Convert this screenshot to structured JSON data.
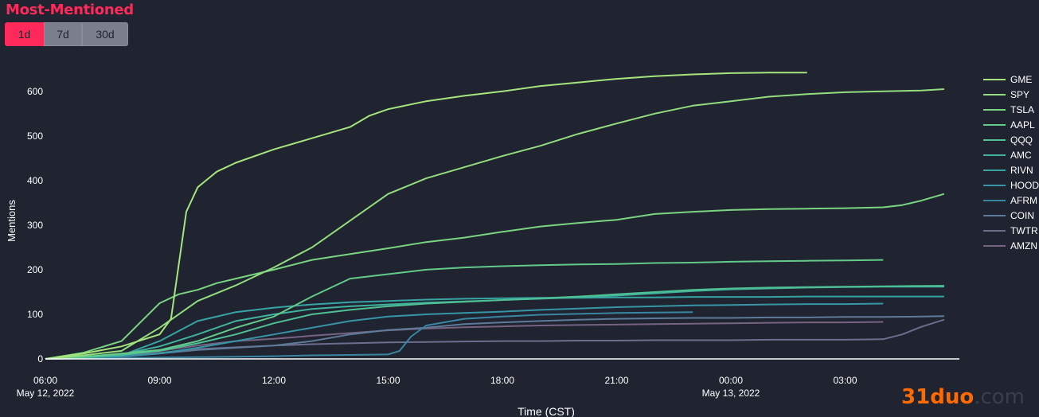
{
  "header": {
    "title": "Most-Mentioned",
    "range_buttons": [
      {
        "label": "1d",
        "active": true
      },
      {
        "label": "7d",
        "active": false
      },
      {
        "label": "30d",
        "active": false
      }
    ]
  },
  "watermark": {
    "brand": "31duo",
    "tld": ".com"
  },
  "colors": {
    "background": "#1f2430",
    "accent": "#ff2a5a",
    "axis": "#ffffff"
  },
  "chart_data": {
    "type": "line",
    "xlabel": "Time (CST)",
    "ylabel": "Mentions",
    "x_unit": "hours since 06:00 CST, May 12, 2022",
    "xlim": [
      0,
      24
    ],
    "ylim": [
      0,
      680
    ],
    "grid": false,
    "legend_position": "right",
    "x_ticks": [
      {
        "x": 0,
        "label": "06:00",
        "sublabel": "May 12, 2022"
      },
      {
        "x": 3,
        "label": "09:00",
        "sublabel": ""
      },
      {
        "x": 6,
        "label": "12:00",
        "sublabel": ""
      },
      {
        "x": 9,
        "label": "15:00",
        "sublabel": ""
      },
      {
        "x": 12,
        "label": "18:00",
        "sublabel": ""
      },
      {
        "x": 15,
        "label": "21:00",
        "sublabel": ""
      },
      {
        "x": 18,
        "label": "00:00",
        "sublabel": "May 13, 2022"
      },
      {
        "x": 21,
        "label": "03:00",
        "sublabel": ""
      }
    ],
    "y_ticks": [
      0,
      100,
      200,
      300,
      400,
      500,
      600
    ],
    "series": [
      {
        "name": "GME",
        "color": "#a6e57c",
        "points": [
          [
            0,
            0
          ],
          [
            1,
            12
          ],
          [
            2,
            28
          ],
          [
            3,
            55
          ],
          [
            3.3,
            90
          ],
          [
            3.5,
            210
          ],
          [
            3.7,
            330
          ],
          [
            4,
            385
          ],
          [
            4.5,
            420
          ],
          [
            5,
            440
          ],
          [
            6,
            470
          ],
          [
            7,
            495
          ],
          [
            8,
            520
          ],
          [
            8.5,
            545
          ],
          [
            9,
            560
          ],
          [
            10,
            578
          ],
          [
            11,
            590
          ],
          [
            12,
            600
          ],
          [
            13,
            612
          ],
          [
            14,
            620
          ],
          [
            15,
            628
          ],
          [
            16,
            634
          ],
          [
            17,
            638
          ],
          [
            18,
            641
          ],
          [
            19,
            642
          ],
          [
            20,
            642
          ]
        ]
      },
      {
        "name": "SPY",
        "color": "#93dd7e",
        "points": [
          [
            0,
            0
          ],
          [
            1,
            8
          ],
          [
            2,
            18
          ],
          [
            3,
            70
          ],
          [
            4,
            130
          ],
          [
            5,
            165
          ],
          [
            6,
            205
          ],
          [
            7,
            250
          ],
          [
            8,
            310
          ],
          [
            9,
            370
          ],
          [
            10,
            405
          ],
          [
            11,
            430
          ],
          [
            12,
            455
          ],
          [
            13,
            478
          ],
          [
            14,
            505
          ],
          [
            15,
            528
          ],
          [
            16,
            550
          ],
          [
            17,
            568
          ],
          [
            18,
            578
          ],
          [
            19,
            588
          ],
          [
            20,
            594
          ],
          [
            21,
            598
          ],
          [
            22,
            600
          ],
          [
            23,
            602
          ],
          [
            23.6,
            605
          ]
        ]
      },
      {
        "name": "TSLA",
        "color": "#7ad481",
        "points": [
          [
            0,
            0
          ],
          [
            1,
            14
          ],
          [
            2,
            40
          ],
          [
            3,
            125
          ],
          [
            3.5,
            145
          ],
          [
            4,
            155
          ],
          [
            4.5,
            170
          ],
          [
            5,
            180
          ],
          [
            6,
            200
          ],
          [
            7,
            222
          ],
          [
            8,
            235
          ],
          [
            9,
            248
          ],
          [
            10,
            262
          ],
          [
            11,
            272
          ],
          [
            12,
            285
          ],
          [
            13,
            297
          ],
          [
            14,
            305
          ],
          [
            15,
            312
          ],
          [
            16,
            325
          ],
          [
            17,
            330
          ],
          [
            18,
            334
          ],
          [
            19,
            336
          ],
          [
            20,
            337
          ],
          [
            21,
            338
          ],
          [
            22,
            340
          ],
          [
            22.5,
            345
          ],
          [
            23,
            355
          ],
          [
            23.6,
            370
          ]
        ]
      },
      {
        "name": "AAPL",
        "color": "#63ca8a",
        "points": [
          [
            0,
            0
          ],
          [
            1,
            5
          ],
          [
            2,
            12
          ],
          [
            3,
            20
          ],
          [
            4,
            40
          ],
          [
            5,
            70
          ],
          [
            6,
            95
          ],
          [
            7,
            140
          ],
          [
            8,
            180
          ],
          [
            9,
            190
          ],
          [
            10,
            200
          ],
          [
            11,
            205
          ],
          [
            12,
            208
          ],
          [
            13,
            210
          ],
          [
            14,
            212
          ],
          [
            15,
            213
          ],
          [
            16,
            215
          ],
          [
            17,
            216
          ],
          [
            18,
            218
          ],
          [
            19,
            219
          ],
          [
            20,
            220
          ],
          [
            21,
            221
          ],
          [
            22,
            222
          ]
        ]
      },
      {
        "name": "QQQ",
        "color": "#4fbf94",
        "points": [
          [
            0,
            0
          ],
          [
            1,
            4
          ],
          [
            2,
            9
          ],
          [
            3,
            18
          ],
          [
            4,
            35
          ],
          [
            5,
            55
          ],
          [
            6,
            80
          ],
          [
            7,
            100
          ],
          [
            8,
            110
          ],
          [
            9,
            118
          ],
          [
            10,
            124
          ],
          [
            11,
            128
          ],
          [
            12,
            132
          ],
          [
            13,
            136
          ],
          [
            14,
            140
          ],
          [
            15,
            145
          ],
          [
            16,
            150
          ],
          [
            17,
            155
          ],
          [
            18,
            158
          ],
          [
            19,
            160
          ],
          [
            20,
            161
          ],
          [
            21,
            162
          ],
          [
            22,
            163
          ],
          [
            23.6,
            164
          ]
        ]
      },
      {
        "name": "AMC",
        "color": "#40b29d",
        "points": [
          [
            0,
            0
          ],
          [
            1,
            3
          ],
          [
            2,
            10
          ],
          [
            3,
            28
          ],
          [
            4,
            55
          ],
          [
            5,
            85
          ],
          [
            6,
            100
          ],
          [
            7,
            112
          ],
          [
            8,
            118
          ],
          [
            9,
            122
          ],
          [
            10,
            126
          ],
          [
            11,
            129
          ],
          [
            12,
            132
          ],
          [
            13,
            135
          ],
          [
            14,
            138
          ],
          [
            15,
            142
          ],
          [
            16,
            147
          ],
          [
            17,
            152
          ],
          [
            18,
            156
          ],
          [
            19,
            158
          ],
          [
            20,
            160
          ],
          [
            21,
            161
          ],
          [
            22,
            162
          ],
          [
            23.6,
            162
          ]
        ]
      },
      {
        "name": "RIVN",
        "color": "#37a4a3",
        "points": [
          [
            0,
            0
          ],
          [
            1,
            2
          ],
          [
            2,
            8
          ],
          [
            3,
            40
          ],
          [
            4,
            85
          ],
          [
            5,
            105
          ],
          [
            6,
            115
          ],
          [
            7,
            122
          ],
          [
            8,
            127
          ],
          [
            9,
            130
          ],
          [
            10,
            133
          ],
          [
            11,
            135
          ],
          [
            12,
            136
          ],
          [
            13,
            137
          ],
          [
            14,
            137
          ],
          [
            15,
            138
          ],
          [
            16,
            138
          ],
          [
            17,
            139
          ],
          [
            18,
            139
          ],
          [
            19,
            139
          ],
          [
            20,
            140
          ],
          [
            21,
            140
          ],
          [
            22,
            140
          ],
          [
            23.6,
            140
          ]
        ]
      },
      {
        "name": "HOOD",
        "color": "#3795a5",
        "points": [
          [
            0,
            0
          ],
          [
            1,
            2
          ],
          [
            2,
            6
          ],
          [
            3,
            12
          ],
          [
            4,
            25
          ],
          [
            5,
            40
          ],
          [
            6,
            55
          ],
          [
            7,
            70
          ],
          [
            8,
            85
          ],
          [
            9,
            95
          ],
          [
            10,
            100
          ],
          [
            11,
            103
          ],
          [
            12,
            106
          ],
          [
            13,
            110
          ],
          [
            14,
            113
          ],
          [
            15,
            116
          ],
          [
            16,
            118
          ],
          [
            17,
            120
          ],
          [
            18,
            121
          ],
          [
            19,
            122
          ],
          [
            20,
            123
          ],
          [
            21,
            123
          ],
          [
            22,
            124
          ]
        ]
      },
      {
        "name": "AFRM",
        "color": "#3a86a2",
        "points": [
          [
            0,
            0
          ],
          [
            1,
            1
          ],
          [
            2,
            2
          ],
          [
            3,
            3
          ],
          [
            4,
            4
          ],
          [
            5,
            5
          ],
          [
            6,
            6
          ],
          [
            7,
            8
          ],
          [
            8,
            9
          ],
          [
            9,
            10
          ],
          [
            9.3,
            18
          ],
          [
            9.6,
            50
          ],
          [
            10,
            75
          ],
          [
            11,
            90
          ],
          [
            12,
            95
          ],
          [
            13,
            99
          ],
          [
            14,
            101
          ],
          [
            15,
            103
          ],
          [
            16,
            104
          ],
          [
            17,
            105
          ]
        ]
      },
      {
        "name": "COIN",
        "color": "#5e7a99",
        "points": [
          [
            0,
            0
          ],
          [
            1,
            2
          ],
          [
            2,
            5
          ],
          [
            3,
            12
          ],
          [
            4,
            20
          ],
          [
            5,
            25
          ],
          [
            6,
            30
          ],
          [
            7,
            40
          ],
          [
            8,
            55
          ],
          [
            9,
            65
          ],
          [
            10,
            70
          ],
          [
            11,
            78
          ],
          [
            12,
            82
          ],
          [
            13,
            85
          ],
          [
            14,
            88
          ],
          [
            15,
            90
          ],
          [
            16,
            91
          ],
          [
            17,
            92
          ],
          [
            18,
            92
          ],
          [
            19,
            93
          ],
          [
            20,
            93
          ],
          [
            21,
            94
          ],
          [
            22,
            94
          ],
          [
            23,
            95
          ],
          [
            23.6,
            96
          ]
        ]
      },
      {
        "name": "TWTR",
        "color": "#6b6e8c",
        "points": [
          [
            0,
            0
          ],
          [
            1,
            2
          ],
          [
            2,
            6
          ],
          [
            3,
            14
          ],
          [
            4,
            22
          ],
          [
            5,
            26
          ],
          [
            6,
            30
          ],
          [
            7,
            33
          ],
          [
            8,
            35
          ],
          [
            9,
            37
          ],
          [
            10,
            38
          ],
          [
            11,
            39
          ],
          [
            12,
            40
          ],
          [
            13,
            40
          ],
          [
            14,
            41
          ],
          [
            15,
            41
          ],
          [
            16,
            42
          ],
          [
            17,
            42
          ],
          [
            18,
            42
          ],
          [
            19,
            43
          ],
          [
            20,
            43
          ],
          [
            21,
            43
          ],
          [
            22,
            44
          ],
          [
            22.5,
            55
          ],
          [
            23,
            72
          ],
          [
            23.6,
            88
          ]
        ]
      },
      {
        "name": "AMZN",
        "color": "#756381",
        "points": [
          [
            0,
            0
          ],
          [
            1,
            2
          ],
          [
            2,
            8
          ],
          [
            3,
            18
          ],
          [
            4,
            30
          ],
          [
            5,
            40
          ],
          [
            6,
            45
          ],
          [
            7,
            52
          ],
          [
            8,
            58
          ],
          [
            9,
            64
          ],
          [
            10,
            68
          ],
          [
            11,
            71
          ],
          [
            12,
            73
          ],
          [
            13,
            75
          ],
          [
            14,
            76
          ],
          [
            15,
            77
          ],
          [
            16,
            78
          ],
          [
            17,
            79
          ],
          [
            18,
            80
          ],
          [
            19,
            81
          ],
          [
            20,
            82
          ],
          [
            21,
            82
          ],
          [
            22,
            83
          ]
        ]
      }
    ]
  }
}
